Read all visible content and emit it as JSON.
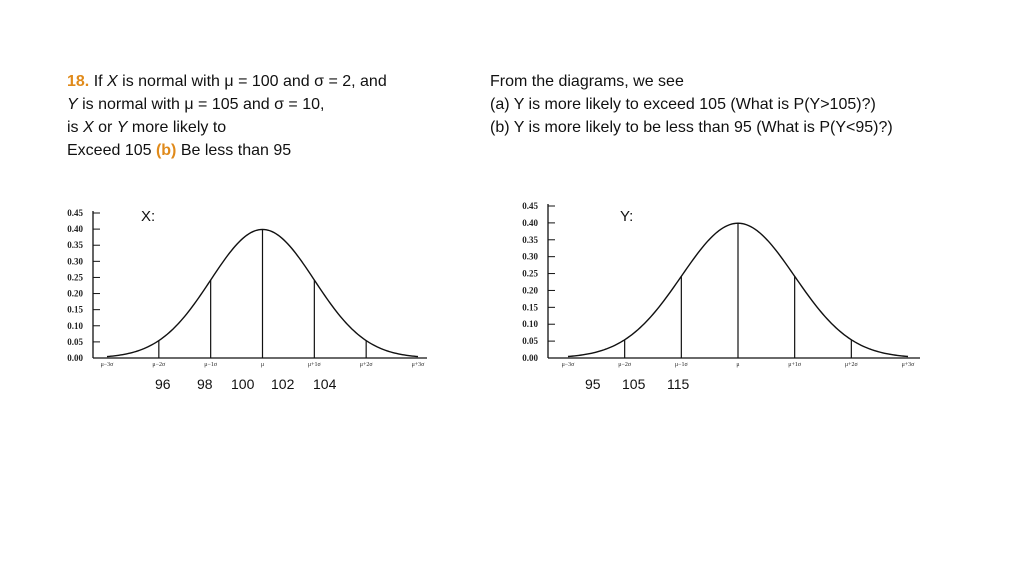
{
  "question": {
    "number": "18.",
    "line1_a": " If ",
    "line1_x": "X",
    "line1_b": " is normal with μ = 100 and σ = 2, and",
    "line2_y": "Y",
    "line2_b": " is normal with μ = 105 and σ = 10,",
    "line3_a": "is ",
    "line3_x": "X",
    "line3_b": " or ",
    "line3_y": "Y",
    "line3_c": " more likely to",
    "line4_a": "Exceed 105 ",
    "line4_b": "(b)",
    "line4_c": " Be less than 95"
  },
  "answer": {
    "line1": "From the diagrams, we see",
    "line2": "(a) Y is more likely to exceed 105 (What is P(Y>105)?)",
    "line3": "(b) Y is more likely to be less than 95 (What is P(Y<95)?)"
  },
  "colors": {
    "accent": "#e08a1a",
    "curve": "#111111"
  },
  "diagram_common": {
    "y_ticks": [
      "0.00",
      "0.05",
      "0.10",
      "0.15",
      "0.20",
      "0.25",
      "0.30",
      "0.35",
      "0.40",
      "0.45"
    ],
    "x_ticks": [
      "μ−3σ",
      "μ−2σ",
      "μ−1σ",
      "μ",
      "μ+1σ",
      "μ+2σ",
      "μ+3σ"
    ]
  },
  "chart_data": [
    {
      "type": "line",
      "name": "X",
      "label": "X:",
      "y_ticks": [
        0.0,
        0.05,
        0.1,
        0.15,
        0.2,
        0.25,
        0.3,
        0.35,
        0.4,
        0.45
      ],
      "ylim": [
        0,
        0.45
      ],
      "x_sigma_range": [
        -3,
        3
      ],
      "vertical_lines_at_sigma": [
        -2,
        -1,
        0,
        1,
        2
      ],
      "value_labels": [
        "96",
        "98",
        "100",
        "102",
        "104"
      ]
    },
    {
      "type": "line",
      "name": "Y",
      "label": "Y:",
      "y_ticks": [
        0.0,
        0.05,
        0.1,
        0.15,
        0.2,
        0.25,
        0.3,
        0.35,
        0.4,
        0.45
      ],
      "ylim": [
        0,
        0.45
      ],
      "x_sigma_range": [
        -3,
        3
      ],
      "vertical_lines_at_sigma": [
        -2,
        -1,
        0,
        1,
        2
      ],
      "value_labels": [
        "95",
        "105",
        "115"
      ]
    }
  ]
}
